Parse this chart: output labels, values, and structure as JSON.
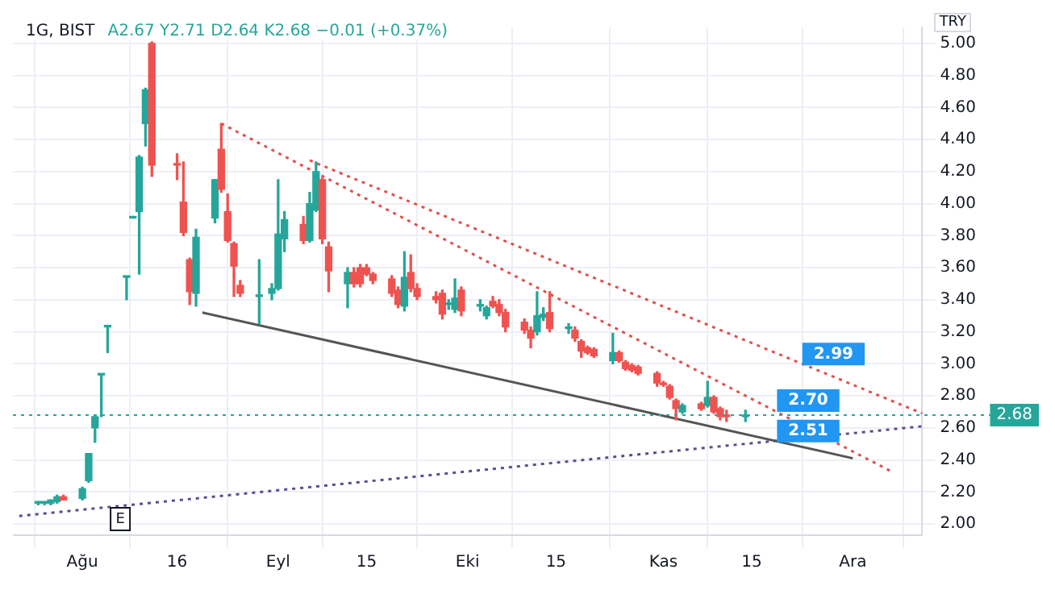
{
  "chart_data": {
    "type": "candlestick",
    "title": "1G, BIST",
    "subtitle": "A2.67 Y2.71 D2.64 K2.68 −0.01 (+0.37%)",
    "ylabel": "TRY",
    "x": [
      "--07-25",
      "--07-26",
      "--07-27",
      "--07-28",
      "--07-29",
      "--08-01",
      "--08-02",
      "--08-03",
      "--08-04",
      "--08-05",
      "--08-08",
      "--08-09",
      "--08-10",
      "--08-11",
      "--08-12",
      "--08-16",
      "--08-17",
      "--08-18",
      "--08-19",
      "--08-22",
      "--08-23",
      "--08-24",
      "--08-25",
      "--08-26",
      "--08-29",
      "--08-31",
      "--09-01",
      "--09-02",
      "--09-05",
      "--09-06",
      "--09-07",
      "--09-08",
      "--09-09",
      "--09-12",
      "--09-13",
      "--09-14",
      "--09-15",
      "--09-16",
      "--09-19",
      "--09-20",
      "--09-21",
      "--09-22",
      "--09-23",
      "--09-26",
      "--09-27",
      "--09-28",
      "--09-29",
      "--09-30",
      "--10-03",
      "--10-04",
      "--10-05",
      "--10-06",
      "--10-07",
      "--10-10",
      "--10-11",
      "--10-12",
      "--10-13",
      "--10-14",
      "--10-17",
      "--10-18",
      "--10-19",
      "--10-20",
      "--10-21",
      "--10-24",
      "--10-25",
      "--10-26",
      "--10-27",
      "--10-28",
      "--10-31",
      "--11-01",
      "--11-02",
      "--11-03",
      "--11-04",
      "--11-07",
      "--11-08",
      "--11-09",
      "--11-10",
      "--11-11",
      "--11-14"
    ],
    "ohlc": [
      [
        2.13,
        2.14,
        2.12,
        2.13
      ],
      [
        2.13,
        2.14,
        2.12,
        2.13
      ],
      [
        2.13,
        2.15,
        2.12,
        2.15
      ],
      [
        2.14,
        2.18,
        2.13,
        2.17
      ],
      [
        2.17,
        2.18,
        2.15,
        2.15
      ],
      [
        2.16,
        2.23,
        2.15,
        2.22
      ],
      [
        2.27,
        2.44,
        2.26,
        2.44
      ],
      [
        2.6,
        2.67,
        2.51,
        2.67
      ],
      [
        2.93,
        2.93,
        2.67,
        2.93
      ],
      [
        3.23,
        3.23,
        3.07,
        3.23
      ],
      [
        3.54,
        3.54,
        3.4,
        3.54
      ],
      [
        3.91,
        3.91,
        3.91,
        3.91
      ],
      [
        3.95,
        4.3,
        3.56,
        4.29
      ],
      [
        4.5,
        4.72,
        4.36,
        4.71
      ],
      [
        5.0,
        5.01,
        4.17,
        4.24
      ],
      [
        4.25,
        4.31,
        4.15,
        4.24
      ],
      [
        4.01,
        4.26,
        3.8,
        3.82
      ],
      [
        3.65,
        3.66,
        3.37,
        3.45
      ],
      [
        3.44,
        3.84,
        3.36,
        3.79
      ],
      [
        3.91,
        4.15,
        3.88,
        4.15
      ],
      [
        4.34,
        4.5,
        4.07,
        4.09
      ],
      [
        3.95,
        4.06,
        3.76,
        3.77
      ],
      [
        3.75,
        3.76,
        3.42,
        3.61
      ],
      [
        3.49,
        3.52,
        3.42,
        3.44
      ],
      [
        3.42,
        3.65,
        3.25,
        3.42
      ],
      [
        3.44,
        3.5,
        3.4,
        3.47
      ],
      [
        3.47,
        4.15,
        3.46,
        3.81
      ],
      [
        3.78,
        3.95,
        3.7,
        3.9
      ],
      [
        3.87,
        3.92,
        3.75,
        3.77
      ],
      [
        3.77,
        4.07,
        3.76,
        4.0
      ],
      [
        3.96,
        4.26,
        3.95,
        4.2
      ],
      [
        4.15,
        4.16,
        3.75,
        3.78
      ],
      [
        3.73,
        3.76,
        3.45,
        3.58
      ],
      [
        3.5,
        3.6,
        3.35,
        3.57
      ],
      [
        3.57,
        3.6,
        3.48,
        3.5
      ],
      [
        3.6,
        3.62,
        3.48,
        3.5
      ],
      [
        3.6,
        3.62,
        3.55,
        3.56
      ],
      [
        3.56,
        3.57,
        3.5,
        3.52
      ],
      [
        3.53,
        3.55,
        3.42,
        3.44
      ],
      [
        3.46,
        3.48,
        3.35,
        3.37
      ],
      [
        3.36,
        3.7,
        3.33,
        3.54
      ],
      [
        3.57,
        3.68,
        3.45,
        3.47
      ],
      [
        3.47,
        3.5,
        3.4,
        3.42
      ],
      [
        3.42,
        3.45,
        3.38,
        3.4
      ],
      [
        3.44,
        3.46,
        3.28,
        3.31
      ],
      [
        3.37,
        3.4,
        3.34,
        3.37
      ],
      [
        3.34,
        3.53,
        3.32,
        3.41
      ],
      [
        3.46,
        3.48,
        3.3,
        3.33
      ],
      [
        3.36,
        3.4,
        3.33,
        3.36
      ],
      [
        3.3,
        3.36,
        3.28,
        3.35
      ],
      [
        3.39,
        3.42,
        3.35,
        3.36
      ],
      [
        3.37,
        3.4,
        3.3,
        3.32
      ],
      [
        3.32,
        3.34,
        3.2,
        3.23
      ],
      [
        3.26,
        3.28,
        3.19,
        3.21
      ],
      [
        3.21,
        3.23,
        3.1,
        3.16
      ],
      [
        3.2,
        3.45,
        3.18,
        3.3
      ],
      [
        3.29,
        3.35,
        3.27,
        3.31
      ],
      [
        3.32,
        3.45,
        3.2,
        3.22
      ],
      [
        3.22,
        3.25,
        3.19,
        3.22
      ],
      [
        3.21,
        3.23,
        3.14,
        3.16
      ],
      [
        3.14,
        3.15,
        3.04,
        3.08
      ],
      [
        3.1,
        3.11,
        3.06,
        3.07
      ],
      [
        3.09,
        3.1,
        3.04,
        3.05
      ],
      [
        3.02,
        3.19,
        3.0,
        3.07
      ],
      [
        3.07,
        3.08,
        3.01,
        3.02
      ],
      [
        3.01,
        3.02,
        2.96,
        2.97
      ],
      [
        2.99,
        3.0,
        2.95,
        2.96
      ],
      [
        2.98,
        2.99,
        2.93,
        2.94
      ],
      [
        2.94,
        2.95,
        2.86,
        2.88
      ],
      [
        2.88,
        2.89,
        2.86,
        2.87
      ],
      [
        2.86,
        2.87,
        2.78,
        2.79
      ],
      [
        2.77,
        2.78,
        2.65,
        2.72
      ],
      [
        2.7,
        2.75,
        2.69,
        2.74
      ],
      [
        2.75,
        2.76,
        2.71,
        2.72
      ],
      [
        2.74,
        2.89,
        2.73,
        2.79
      ],
      [
        2.79,
        2.8,
        2.69,
        2.7
      ],
      [
        2.72,
        2.73,
        2.65,
        2.67
      ],
      [
        2.68,
        2.71,
        2.64,
        2.67
      ],
      [
        2.67,
        2.71,
        2.64,
        2.68
      ]
    ],
    "colors": [
      "#26a69a",
      "#26a69a",
      "#26a69a",
      "#26a69a",
      "#ef5350",
      "#26a69a",
      "#26a69a",
      "#26a69a",
      "#26a69a",
      "#26a69a",
      "#26a69a",
      "#26a69a",
      "#26a69a",
      "#26a69a",
      "#ef5350",
      "#ef5350",
      "#ef5350",
      "#ef5350",
      "#26a69a",
      "#26a69a",
      "#ef5350",
      "#ef5350",
      "#ef5350",
      "#ef5350",
      "#26a69a",
      "#26a69a",
      "#26a69a",
      "#26a69a",
      "#ef5350",
      "#26a69a",
      "#26a69a",
      "#ef5350",
      "#ef5350",
      "#26a69a",
      "#ef5350",
      "#ef5350",
      "#ef5350",
      "#ef5350",
      "#ef5350",
      "#ef5350",
      "#26a69a",
      "#ef5350",
      "#ef5350",
      "#ef5350",
      "#ef5350",
      "#26a69a",
      "#26a69a",
      "#ef5350",
      "#26a69a",
      "#26a69a",
      "#ef5350",
      "#ef5350",
      "#ef5350",
      "#ef5350",
      "#ef5350",
      "#26a69a",
      "#26a69a",
      "#ef5350",
      "#26a69a",
      "#ef5350",
      "#ef5350",
      "#ef5350",
      "#ef5350",
      "#26a69a",
      "#ef5350",
      "#ef5350",
      "#ef5350",
      "#ef5350",
      "#ef5350",
      "#ef5350",
      "#ef5350",
      "#ef5350",
      "#26a69a",
      "#ef5350",
      "#26a69a",
      "#ef5350",
      "#ef5350",
      "#ef5350",
      "#26a69a"
    ],
    "series": [
      {
        "type": "line",
        "color": "#e0504a",
        "line_style": "dotted",
        "x": [
          "--08-23",
          "--12-07"
        ],
        "values": [
          4.5,
          2.33
        ]
      },
      {
        "type": "line",
        "color": "#e0504a",
        "line_style": "dotted",
        "x": [
          "--09-06",
          "--12-12"
        ],
        "values": [
          4.27,
          2.69
        ]
      },
      {
        "type": "line",
        "color": "#555555",
        "line_style": "solid",
        "x": [
          "--08-20",
          "--12-01"
        ],
        "values": [
          3.32,
          2.41
        ]
      },
      {
        "type": "line",
        "color": "#5a4d8f",
        "line_style": "dotted",
        "x": [
          "--07-22",
          "--12-12"
        ],
        "values": [
          2.05,
          2.61
        ]
      }
    ],
    "marker": "none",
    "xlim": [
      "--07-21",
      "--12-12"
    ],
    "xticks": [
      {
        "value": "--08-01",
        "label": "Ağu"
      },
      {
        "value": "--08-16",
        "label": "16"
      },
      {
        "value": "--09-01",
        "label": "Eyl"
      },
      {
        "value": "--09-15",
        "label": "15"
      },
      {
        "value": "--10-01",
        "label": "Eki"
      },
      {
        "value": "--10-15",
        "label": "15"
      },
      {
        "value": "--11-01",
        "label": "Kas"
      },
      {
        "value": "--11-15",
        "label": "15"
      },
      {
        "value": "--12-01",
        "label": "Ara"
      }
    ],
    "ylim": [
      1.93,
      5.1
    ],
    "yticks": [
      {
        "value": 2,
        "label": "2.00"
      },
      {
        "value": 2.2,
        "label": "2.20"
      },
      {
        "value": 2.4,
        "label": "2.40"
      },
      {
        "value": 2.6,
        "label": "2.60"
      },
      {
        "value": 2.8,
        "label": "2.80"
      },
      {
        "value": 3,
        "label": "3.00"
      },
      {
        "value": 3.2,
        "label": "3.20"
      },
      {
        "value": 3.4,
        "label": "3.40"
      },
      {
        "value": 3.6,
        "label": "3.60"
      },
      {
        "value": 3.8,
        "label": "3.80"
      },
      {
        "value": 4,
        "label": "4.00"
      },
      {
        "value": 4.2,
        "label": "4.20"
      },
      {
        "value": 4.4,
        "label": "4.40"
      },
      {
        "value": 4.6,
        "label": "4.60"
      },
      {
        "value": 4.8,
        "label": "4.80"
      },
      {
        "value": 5,
        "label": "5.00"
      }
    ],
    "ref_lines": [
      {
        "axis": "y",
        "value": 2.68,
        "label": "2.68",
        "color": "#26a69a",
        "line_style": "dotted"
      }
    ],
    "annotations": [
      {
        "text": "2.99",
        "x": "--11-23",
        "y": 2.99
      },
      {
        "text": "2.70",
        "x": "--11-19",
        "y": 2.7
      },
      {
        "text": "2.51",
        "x": "--11-19",
        "y": 2.51
      },
      {
        "text": "E",
        "x": "--08-07"
      }
    ],
    "grid": true,
    "legend": false
  }
}
